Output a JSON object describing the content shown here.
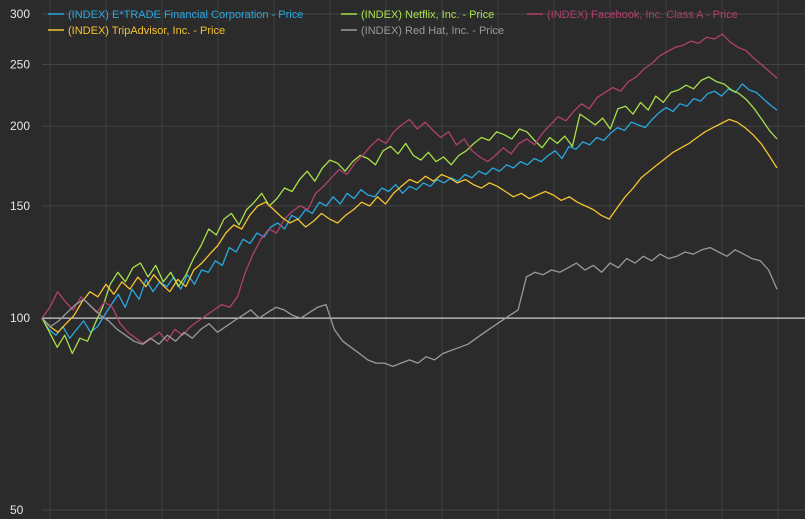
{
  "chart_data": {
    "type": "line",
    "title": "",
    "xlabel": "",
    "ylabel": "",
    "y_scale": "log",
    "ylim": [
      50,
      300
    ],
    "y_ticks": [
      50,
      100,
      150,
      200,
      250,
      300
    ],
    "baseline": 100,
    "grid": true,
    "legend_placement": "top",
    "x_points": 120,
    "series": [
      {
        "name": "(INDEX) E*TRADE Financial Corporation - Price",
        "color": "#2aa7e0",
        "values": [
          100,
          96,
          94,
          97,
          93,
          96,
          99,
          95,
          97,
          101,
          105,
          109,
          104,
          111,
          107,
          115,
          110,
          114,
          112,
          116,
          111,
          117,
          113,
          119,
          118,
          123,
          121,
          129,
          127,
          133,
          131,
          136,
          134,
          139,
          141,
          138,
          145,
          143,
          148,
          146,
          152,
          150,
          155,
          151,
          157,
          154,
          159,
          156,
          155,
          160,
          158,
          162,
          157,
          161,
          159,
          163,
          161,
          165,
          163,
          166,
          164,
          168,
          166,
          170,
          168,
          172,
          170,
          174,
          172,
          176,
          174,
          178,
          176,
          180,
          183,
          178,
          186,
          184,
          189,
          187,
          192,
          190,
          195,
          199,
          197,
          203,
          201,
          199,
          205,
          210,
          214,
          211,
          217,
          215,
          221,
          219,
          225,
          227,
          223,
          229,
          226,
          233,
          228,
          226,
          221,
          216,
          212
        ]
      },
      {
        "name": "(INDEX) Netflix, Inc. - Price",
        "color": "#a7e04a",
        "values": [
          100,
          95,
          90,
          94,
          88,
          93,
          92,
          98,
          104,
          113,
          118,
          114,
          120,
          122,
          116,
          121,
          114,
          118,
          112,
          117,
          124,
          130,
          138,
          135,
          143,
          146,
          140,
          148,
          152,
          157,
          150,
          154,
          160,
          158,
          165,
          170,
          164,
          172,
          177,
          175,
          170,
          176,
          180,
          178,
          174,
          183,
          186,
          181,
          188,
          180,
          177,
          182,
          176,
          179,
          174,
          180,
          183,
          188,
          192,
          190,
          196,
          194,
          191,
          198,
          196,
          190,
          185,
          192,
          188,
          193,
          186,
          209,
          205,
          201,
          206,
          198,
          213,
          215,
          209,
          218,
          212,
          223,
          218,
          226,
          228,
          232,
          229,
          236,
          239,
          235,
          233,
          228,
          225,
          220,
          213,
          205,
          197,
          191
        ]
      },
      {
        "name": "(INDEX) Facebook, Inc. Class A - Price",
        "color": "#b0406e",
        "values": [
          100,
          104,
          110,
          106,
          103,
          108,
          105,
          102,
          106,
          104,
          98,
          95,
          93,
          91,
          93,
          95,
          92,
          96,
          94,
          97,
          99,
          101,
          103,
          105,
          104,
          108,
          118,
          126,
          133,
          138,
          136,
          143,
          147,
          150,
          148,
          157,
          161,
          166,
          171,
          168,
          175,
          180,
          186,
          191,
          188,
          196,
          201,
          205,
          198,
          203,
          197,
          192,
          196,
          187,
          191,
          183,
          179,
          176,
          180,
          185,
          181,
          188,
          191,
          187,
          195,
          201,
          207,
          204,
          211,
          217,
          213,
          222,
          226,
          230,
          227,
          235,
          239,
          246,
          251,
          258,
          262,
          266,
          268,
          272,
          270,
          276,
          274,
          279,
          271,
          266,
          263,
          256,
          250,
          244,
          238
        ]
      },
      {
        "name": "(INDEX) TripAdvisor, Inc. - Price",
        "color": "#f5c330",
        "values": [
          100,
          97,
          95,
          98,
          101,
          106,
          110,
          108,
          113,
          109,
          114,
          111,
          116,
          112,
          117,
          113,
          110,
          115,
          112,
          119,
          122,
          126,
          130,
          136,
          140,
          138,
          145,
          150,
          152,
          148,
          144,
          141,
          143,
          139,
          142,
          146,
          143,
          141,
          145,
          148,
          152,
          150,
          155,
          151,
          157,
          161,
          165,
          163,
          167,
          164,
          168,
          166,
          163,
          165,
          162,
          160,
          163,
          161,
          158,
          155,
          157,
          154,
          156,
          158,
          156,
          153,
          155,
          152,
          150,
          148,
          145,
          143,
          149,
          155,
          160,
          166,
          170,
          174,
          178,
          182,
          185,
          188,
          192,
          196,
          199,
          202,
          205,
          203,
          199,
          194,
          188,
          180,
          172
        ]
      },
      {
        "name": "(INDEX) Red Hat, Inc. - Price",
        "color": "#9a9a9a",
        "values": [
          100,
          97,
          99,
          102,
          105,
          107,
          104,
          101,
          99,
          96,
          94,
          92,
          91,
          93,
          91,
          94,
          92,
          95,
          93,
          96,
          98,
          95,
          97,
          99,
          101,
          103,
          100,
          102,
          104,
          103,
          101,
          100,
          102,
          104,
          105,
          96,
          92,
          90,
          88,
          86,
          85,
          85,
          84,
          85,
          86,
          85,
          87,
          86,
          88,
          89,
          90,
          91,
          93,
          95,
          97,
          99,
          101,
          103,
          116,
          118,
          117,
          119,
          118,
          120,
          122,
          119,
          121,
          118,
          122,
          120,
          124,
          122,
          125,
          123,
          126,
          124,
          125,
          127,
          126,
          128,
          129,
          127,
          125,
          128,
          126,
          124,
          123,
          119,
          111
        ]
      }
    ]
  }
}
